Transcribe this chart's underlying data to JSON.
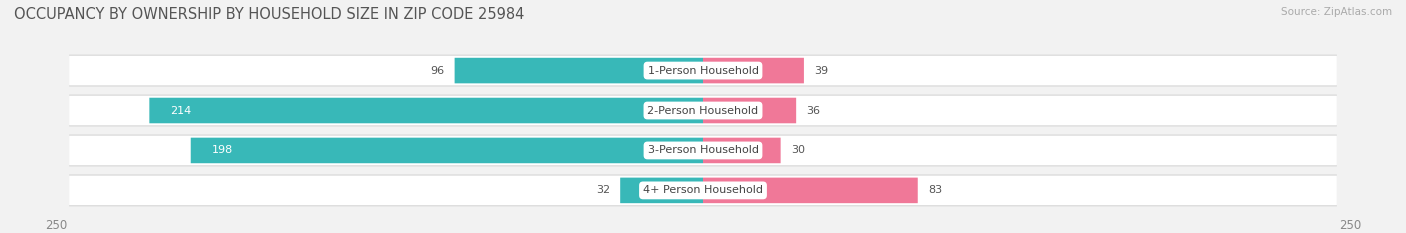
{
  "title": "OCCUPANCY BY OWNERSHIP BY HOUSEHOLD SIZE IN ZIP CODE 25984",
  "source": "Source: ZipAtlas.com",
  "categories": [
    "1-Person Household",
    "2-Person Household",
    "3-Person Household",
    "4+ Person Household"
  ],
  "owner_values": [
    96,
    214,
    198,
    32
  ],
  "renter_values": [
    39,
    36,
    30,
    83
  ],
  "owner_color": "#38b8b8",
  "renter_color": "#f07898",
  "owner_color_light": "#7dd4d4",
  "renter_color_light": "#f8b0c0",
  "axis_max": 250,
  "background_color": "#f2f2f2",
  "row_bg_color": "#ffffff",
  "row_border_color": "#d8d8d8",
  "title_fontsize": 10.5,
  "source_fontsize": 7.5,
  "bar_label_fontsize": 8,
  "category_fontsize": 8,
  "axis_label_fontsize": 8.5,
  "legend_fontsize": 8
}
